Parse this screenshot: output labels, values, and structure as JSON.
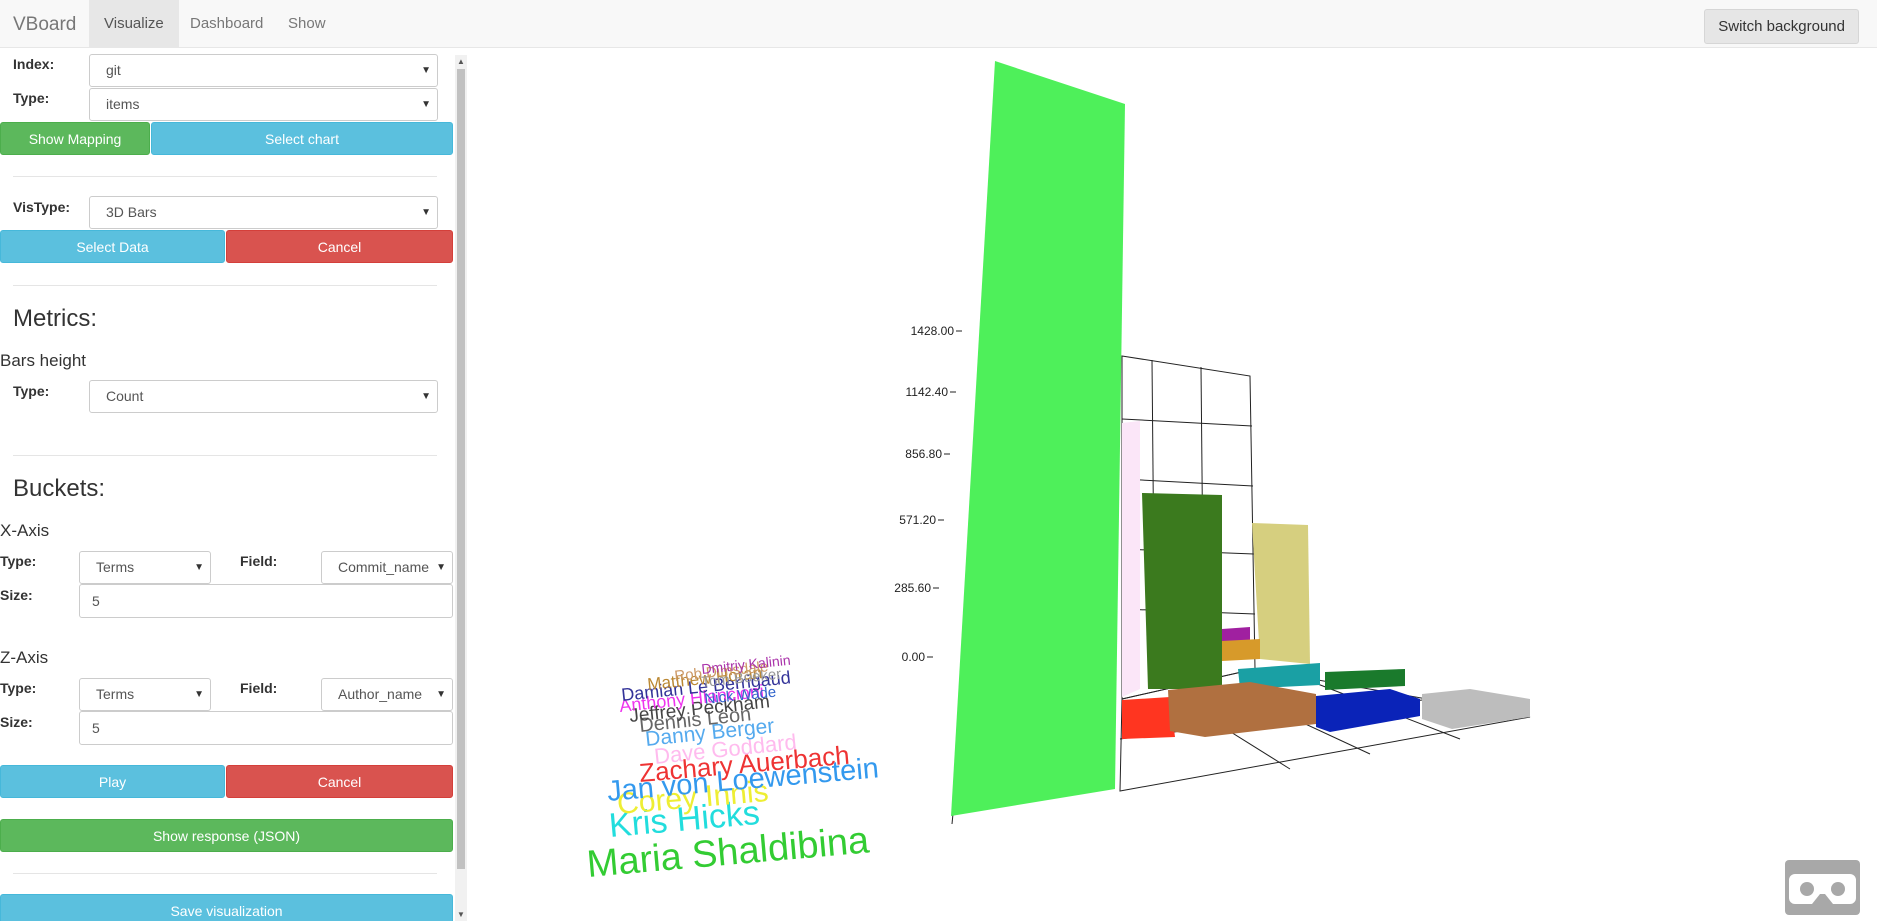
{
  "nav": {
    "brand": "VBoard",
    "links": [
      "Visualize",
      "Dashboard",
      "Show"
    ],
    "switch_background": "Switch background"
  },
  "form": {
    "index_label": "Index:",
    "index_value": "git",
    "type_label": "Type:",
    "type_value": "items",
    "show_mapping": "Show Mapping",
    "select_chart": "Select chart",
    "vistype_label": "VisType:",
    "vistype_value": "3D Bars",
    "select_data": "Select Data",
    "cancel": "Cancel",
    "metrics_heading": "Metrics:",
    "bars_height": "Bars height",
    "metric_type_label": "Type:",
    "metric_type_value": "Count",
    "buckets_heading": "Buckets:",
    "xaxis": {
      "title": "X-Axis",
      "type_label": "Type:",
      "type_value": "Terms",
      "field_label": "Field:",
      "field_value": "Commit_name",
      "size_label": "Size:",
      "size_value": "5"
    },
    "zaxis": {
      "title": "Z-Axis",
      "type_label": "Type:",
      "type_value": "Terms",
      "field_label": "Field:",
      "field_value": "Author_name",
      "size_label": "Size:",
      "size_value": "5"
    },
    "play": "Play",
    "cancel2": "Cancel",
    "show_response": "Show response (JSON)",
    "save_visualization": "Save visualization"
  },
  "chart_data": {
    "type": "bar",
    "y_ticks": [
      "0.00",
      "285.60",
      "571.20",
      "856.80",
      "1142.40",
      "1428.00"
    ],
    "ylim": [
      0,
      1428
    ],
    "author_labels": [
      {
        "text": "Maria Shaldibina",
        "color": "#33cc33"
      },
      {
        "text": "Kris Hicks",
        "color": "#22dddd"
      },
      {
        "text": "Corey Innis",
        "color": "#eeee33"
      },
      {
        "text": "Jan von Loewenstein",
        "color": "#3399ee"
      },
      {
        "text": "Zachary Auerbach",
        "color": "#ee3333"
      },
      {
        "text": "Dave Goddard",
        "color": "#ffbbee"
      },
      {
        "text": "Danny Berger",
        "color": "#55aaee"
      },
      {
        "text": "Dennis Leon",
        "color": "#666666"
      },
      {
        "text": "Jeffrey Peckham",
        "color": "#444444"
      },
      {
        "text": "Anthony Hlancioni",
        "color": "#ee33ee"
      },
      {
        "text": "Damian Le Berrigaud",
        "color": "#333399"
      },
      {
        "text": "Matthew Horan",
        "color": "#bb8833"
      },
      {
        "text": "Nick Wade",
        "color": "#3366cc"
      },
      {
        "text": "Tom Boeker",
        "color": "#999999"
      },
      {
        "text": "Rob Dimsdale",
        "color": "#cc9966"
      },
      {
        "text": "Dmitriy Kalinin",
        "color": "#aa33aa"
      }
    ]
  }
}
